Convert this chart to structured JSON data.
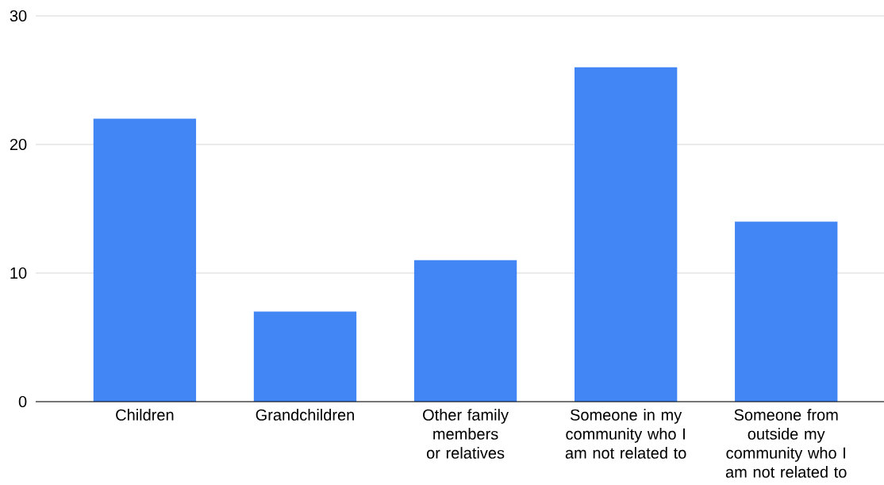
{
  "chart_data": {
    "type": "bar",
    "categories": [
      "Children",
      "Grandchildren",
      "Other family members or relatives",
      "Someone in my community who I am not related to",
      "Someone from outside my community who I am not related to"
    ],
    "values": [
      22,
      7,
      11,
      26,
      14
    ],
    "color": "#4285f4",
    "ylim": [
      0,
      30
    ],
    "yticks": [
      0,
      10,
      20,
      30
    ],
    "grid": "y"
  }
}
